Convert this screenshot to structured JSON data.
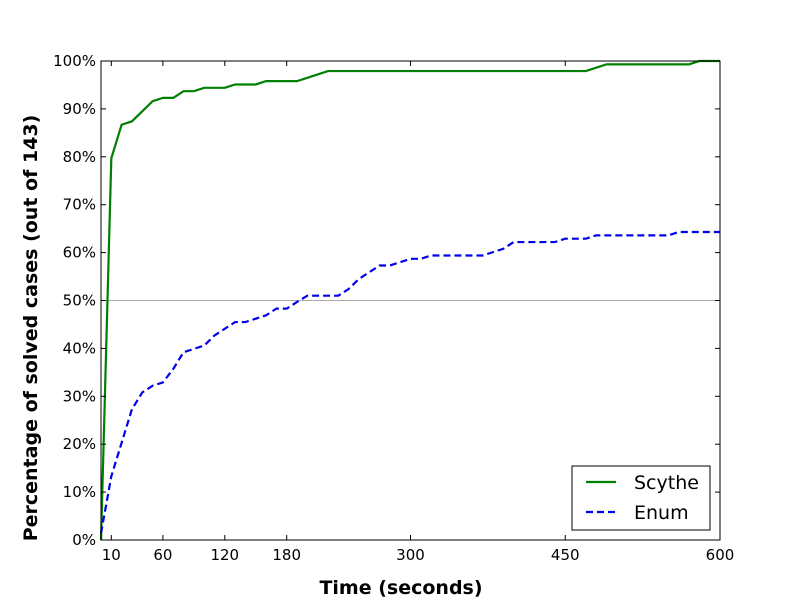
{
  "chart_data": {
    "type": "line",
    "xlabel": "Time (seconds)",
    "ylabel": "Percentage of solved cases (out of 143)",
    "xlim": [
      0,
      600
    ],
    "ylim": [
      0,
      100
    ],
    "x_ticks": [
      {
        "value": 10,
        "label": "10"
      },
      {
        "value": 60,
        "label": "60"
      },
      {
        "value": 120,
        "label": "120"
      },
      {
        "value": 180,
        "label": "180"
      },
      {
        "value": 300,
        "label": "300"
      },
      {
        "value": 450,
        "label": "450"
      },
      {
        "value": 600,
        "label": "600"
      }
    ],
    "y_ticks": [
      {
        "value": 0,
        "label": "0%"
      },
      {
        "value": 10,
        "label": "10%"
      },
      {
        "value": 20,
        "label": "20%"
      },
      {
        "value": 30,
        "label": "30%"
      },
      {
        "value": 40,
        "label": "40%"
      },
      {
        "value": 50,
        "label": "50%"
      },
      {
        "value": 60,
        "label": "60%"
      },
      {
        "value": 70,
        "label": "70%"
      },
      {
        "value": 80,
        "label": "80%"
      },
      {
        "value": 90,
        "label": "90%"
      },
      {
        "value": 100,
        "label": "100%"
      }
    ],
    "reference_line": {
      "y": 50,
      "color": "#aaaaaa"
    },
    "legend_position": "bottom-right",
    "series": [
      {
        "name": "Scythe",
        "color": "#008000",
        "dash": "solid",
        "points": [
          [
            0,
            0
          ],
          [
            10,
            79.7
          ],
          [
            20,
            86.7
          ],
          [
            30,
            87.4
          ],
          [
            40,
            89.5
          ],
          [
            50,
            91.6
          ],
          [
            60,
            92.3
          ],
          [
            70,
            92.3
          ],
          [
            80,
            93.7
          ],
          [
            90,
            93.7
          ],
          [
            100,
            94.4
          ],
          [
            110,
            94.4
          ],
          [
            120,
            94.4
          ],
          [
            130,
            95.1
          ],
          [
            140,
            95.1
          ],
          [
            150,
            95.1
          ],
          [
            160,
            95.8
          ],
          [
            170,
            95.8
          ],
          [
            180,
            95.8
          ],
          [
            190,
            95.8
          ],
          [
            200,
            96.5
          ],
          [
            210,
            97.2
          ],
          [
            220,
            97.9
          ],
          [
            240,
            97.9
          ],
          [
            300,
            97.9
          ],
          [
            360,
            97.9
          ],
          [
            420,
            97.9
          ],
          [
            470,
            97.9
          ],
          [
            490,
            99.3
          ],
          [
            520,
            99.3
          ],
          [
            560,
            99.3
          ],
          [
            570,
            99.3
          ],
          [
            580,
            100
          ],
          [
            600,
            100
          ]
        ]
      },
      {
        "name": "Enum",
        "color": "#0000ee",
        "dash": "dashed",
        "points": [
          [
            0,
            1.4
          ],
          [
            10,
            13.3
          ],
          [
            20,
            20.3
          ],
          [
            30,
            27.3
          ],
          [
            40,
            30.8
          ],
          [
            50,
            32.2
          ],
          [
            60,
            32.9
          ],
          [
            70,
            35.7
          ],
          [
            80,
            39.2
          ],
          [
            90,
            39.9
          ],
          [
            100,
            40.6
          ],
          [
            110,
            42.7
          ],
          [
            120,
            44.1
          ],
          [
            130,
            45.5
          ],
          [
            140,
            45.5
          ],
          [
            150,
            46.2
          ],
          [
            160,
            46.9
          ],
          [
            170,
            48.3
          ],
          [
            180,
            48.3
          ],
          [
            190,
            49.7
          ],
          [
            200,
            51
          ],
          [
            220,
            51
          ],
          [
            230,
            51
          ],
          [
            240,
            52.4
          ],
          [
            250,
            54.5
          ],
          [
            260,
            55.9
          ],
          [
            270,
            57.3
          ],
          [
            280,
            57.3
          ],
          [
            290,
            58
          ],
          [
            300,
            58.7
          ],
          [
            310,
            58.7
          ],
          [
            320,
            59.4
          ],
          [
            330,
            59.4
          ],
          [
            340,
            59.4
          ],
          [
            350,
            59.4
          ],
          [
            360,
            59.4
          ],
          [
            370,
            59.4
          ],
          [
            380,
            60.1
          ],
          [
            390,
            60.8
          ],
          [
            400,
            62.2
          ],
          [
            420,
            62.2
          ],
          [
            440,
            62.2
          ],
          [
            450,
            62.9
          ],
          [
            470,
            62.9
          ],
          [
            480,
            63.6
          ],
          [
            500,
            63.6
          ],
          [
            540,
            63.6
          ],
          [
            550,
            63.6
          ],
          [
            560,
            64.3
          ],
          [
            600,
            64.3
          ]
        ]
      }
    ]
  }
}
